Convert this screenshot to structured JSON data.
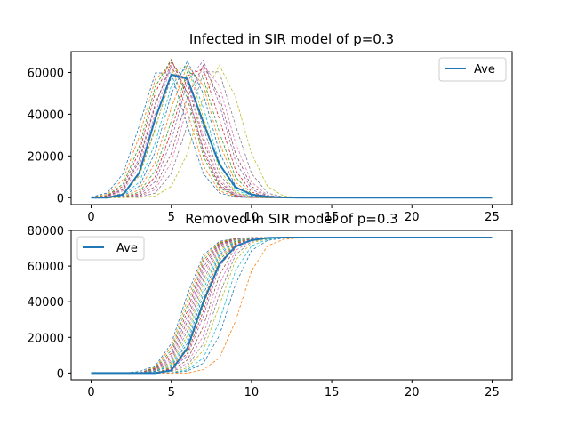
{
  "chart_data": [
    {
      "type": "line",
      "title": "Infected in SIR model of p=0.3",
      "xlabel": "",
      "ylabel": "",
      "xlim": [
        -1.25,
        26.25
      ],
      "ylim": [
        -3300,
        70000
      ],
      "xticks": [
        0,
        5,
        10,
        15,
        20,
        25
      ],
      "yticks": [
        0,
        20000,
        40000,
        60000
      ],
      "x": [
        0,
        1,
        2,
        3,
        4,
        5,
        6,
        7,
        8,
        9,
        10,
        11,
        12,
        13,
        14,
        15,
        16,
        17,
        18,
        19,
        20,
        21,
        22,
        23,
        24,
        25
      ],
      "average": {
        "name": "Ave",
        "values": [
          0,
          0,
          1500,
          12000,
          38000,
          59000,
          57000,
          36000,
          16000,
          5000,
          1500,
          500,
          100,
          0,
          0,
          0,
          0,
          0,
          0,
          0,
          0,
          0,
          0,
          0,
          0,
          0
        ]
      },
      "simulated_run_peaks": [
        {
          "peak_t": 4.5,
          "peak": 64000
        },
        {
          "peak_t": 4.7,
          "peak": 65000
        },
        {
          "peak_t": 4.9,
          "peak": 66500
        },
        {
          "peak_t": 5.0,
          "peak": 66000
        },
        {
          "peak_t": 5.1,
          "peak": 63000
        },
        {
          "peak_t": 5.2,
          "peak": 65500
        },
        {
          "peak_t": 5.3,
          "peak": 64500
        },
        {
          "peak_t": 5.5,
          "peak": 62000
        },
        {
          "peak_t": 5.6,
          "peak": 66000
        },
        {
          "peak_t": 5.8,
          "peak": 64000
        },
        {
          "peak_t": 6.0,
          "peak": 65500
        },
        {
          "peak_t": 6.2,
          "peak": 64000
        },
        {
          "peak_t": 6.4,
          "peak": 63000
        },
        {
          "peak_t": 6.6,
          "peak": 64500
        },
        {
          "peak_t": 6.8,
          "peak": 66500
        },
        {
          "peak_t": 7.0,
          "peak": 63500
        },
        {
          "peak_t": 7.2,
          "peak": 64000
        },
        {
          "peak_t": 7.5,
          "peak": 64500
        },
        {
          "peak_t": 8.0,
          "peak": 63500
        }
      ],
      "legend": {
        "entries": [
          "Ave"
        ],
        "placement": "upper right"
      }
    },
    {
      "type": "line",
      "title": "Removed in SIR model of p=0.3",
      "xlabel": "",
      "ylabel": "",
      "xlim": [
        -1.25,
        26.25
      ],
      "ylim": [
        -3800,
        80000
      ],
      "xticks": [
        0,
        5,
        10,
        15,
        20,
        25
      ],
      "yticks": [
        0,
        20000,
        40000,
        60000,
        80000
      ],
      "x": [
        0,
        1,
        2,
        3,
        4,
        5,
        6,
        7,
        8,
        9,
        10,
        11,
        12,
        13,
        14,
        15,
        16,
        17,
        18,
        19,
        20,
        21,
        22,
        23,
        24,
        25
      ],
      "average": {
        "name": "Ave",
        "values": [
          0,
          0,
          0,
          0,
          0,
          1500,
          14000,
          40000,
          61000,
          71000,
          74500,
          75800,
          76000,
          76000,
          76000,
          76000,
          76000,
          76000,
          76000,
          76000,
          76000,
          76000,
          76000,
          76000,
          76000,
          76000
        ]
      },
      "final_removed": 76000,
      "simulated_run_midpoints": [
        5.8,
        5.9,
        6.0,
        6.1,
        6.2,
        6.3,
        6.4,
        6.5,
        6.6,
        6.7,
        6.8,
        6.9,
        7.0,
        7.1,
        7.2,
        7.4,
        7.6,
        7.8,
        8.0,
        8.3,
        8.6,
        9.3
      ],
      "legend": {
        "entries": [
          "Ave"
        ],
        "placement": "upper left"
      }
    }
  ],
  "colors": {
    "average": "#1f77b4",
    "runs": [
      "#1f77b4",
      "#ff7f0e",
      "#2ca02c",
      "#d62728",
      "#9467bd",
      "#8c564b",
      "#e377c2",
      "#7f7f7f",
      "#bcbd22",
      "#17becf"
    ]
  }
}
